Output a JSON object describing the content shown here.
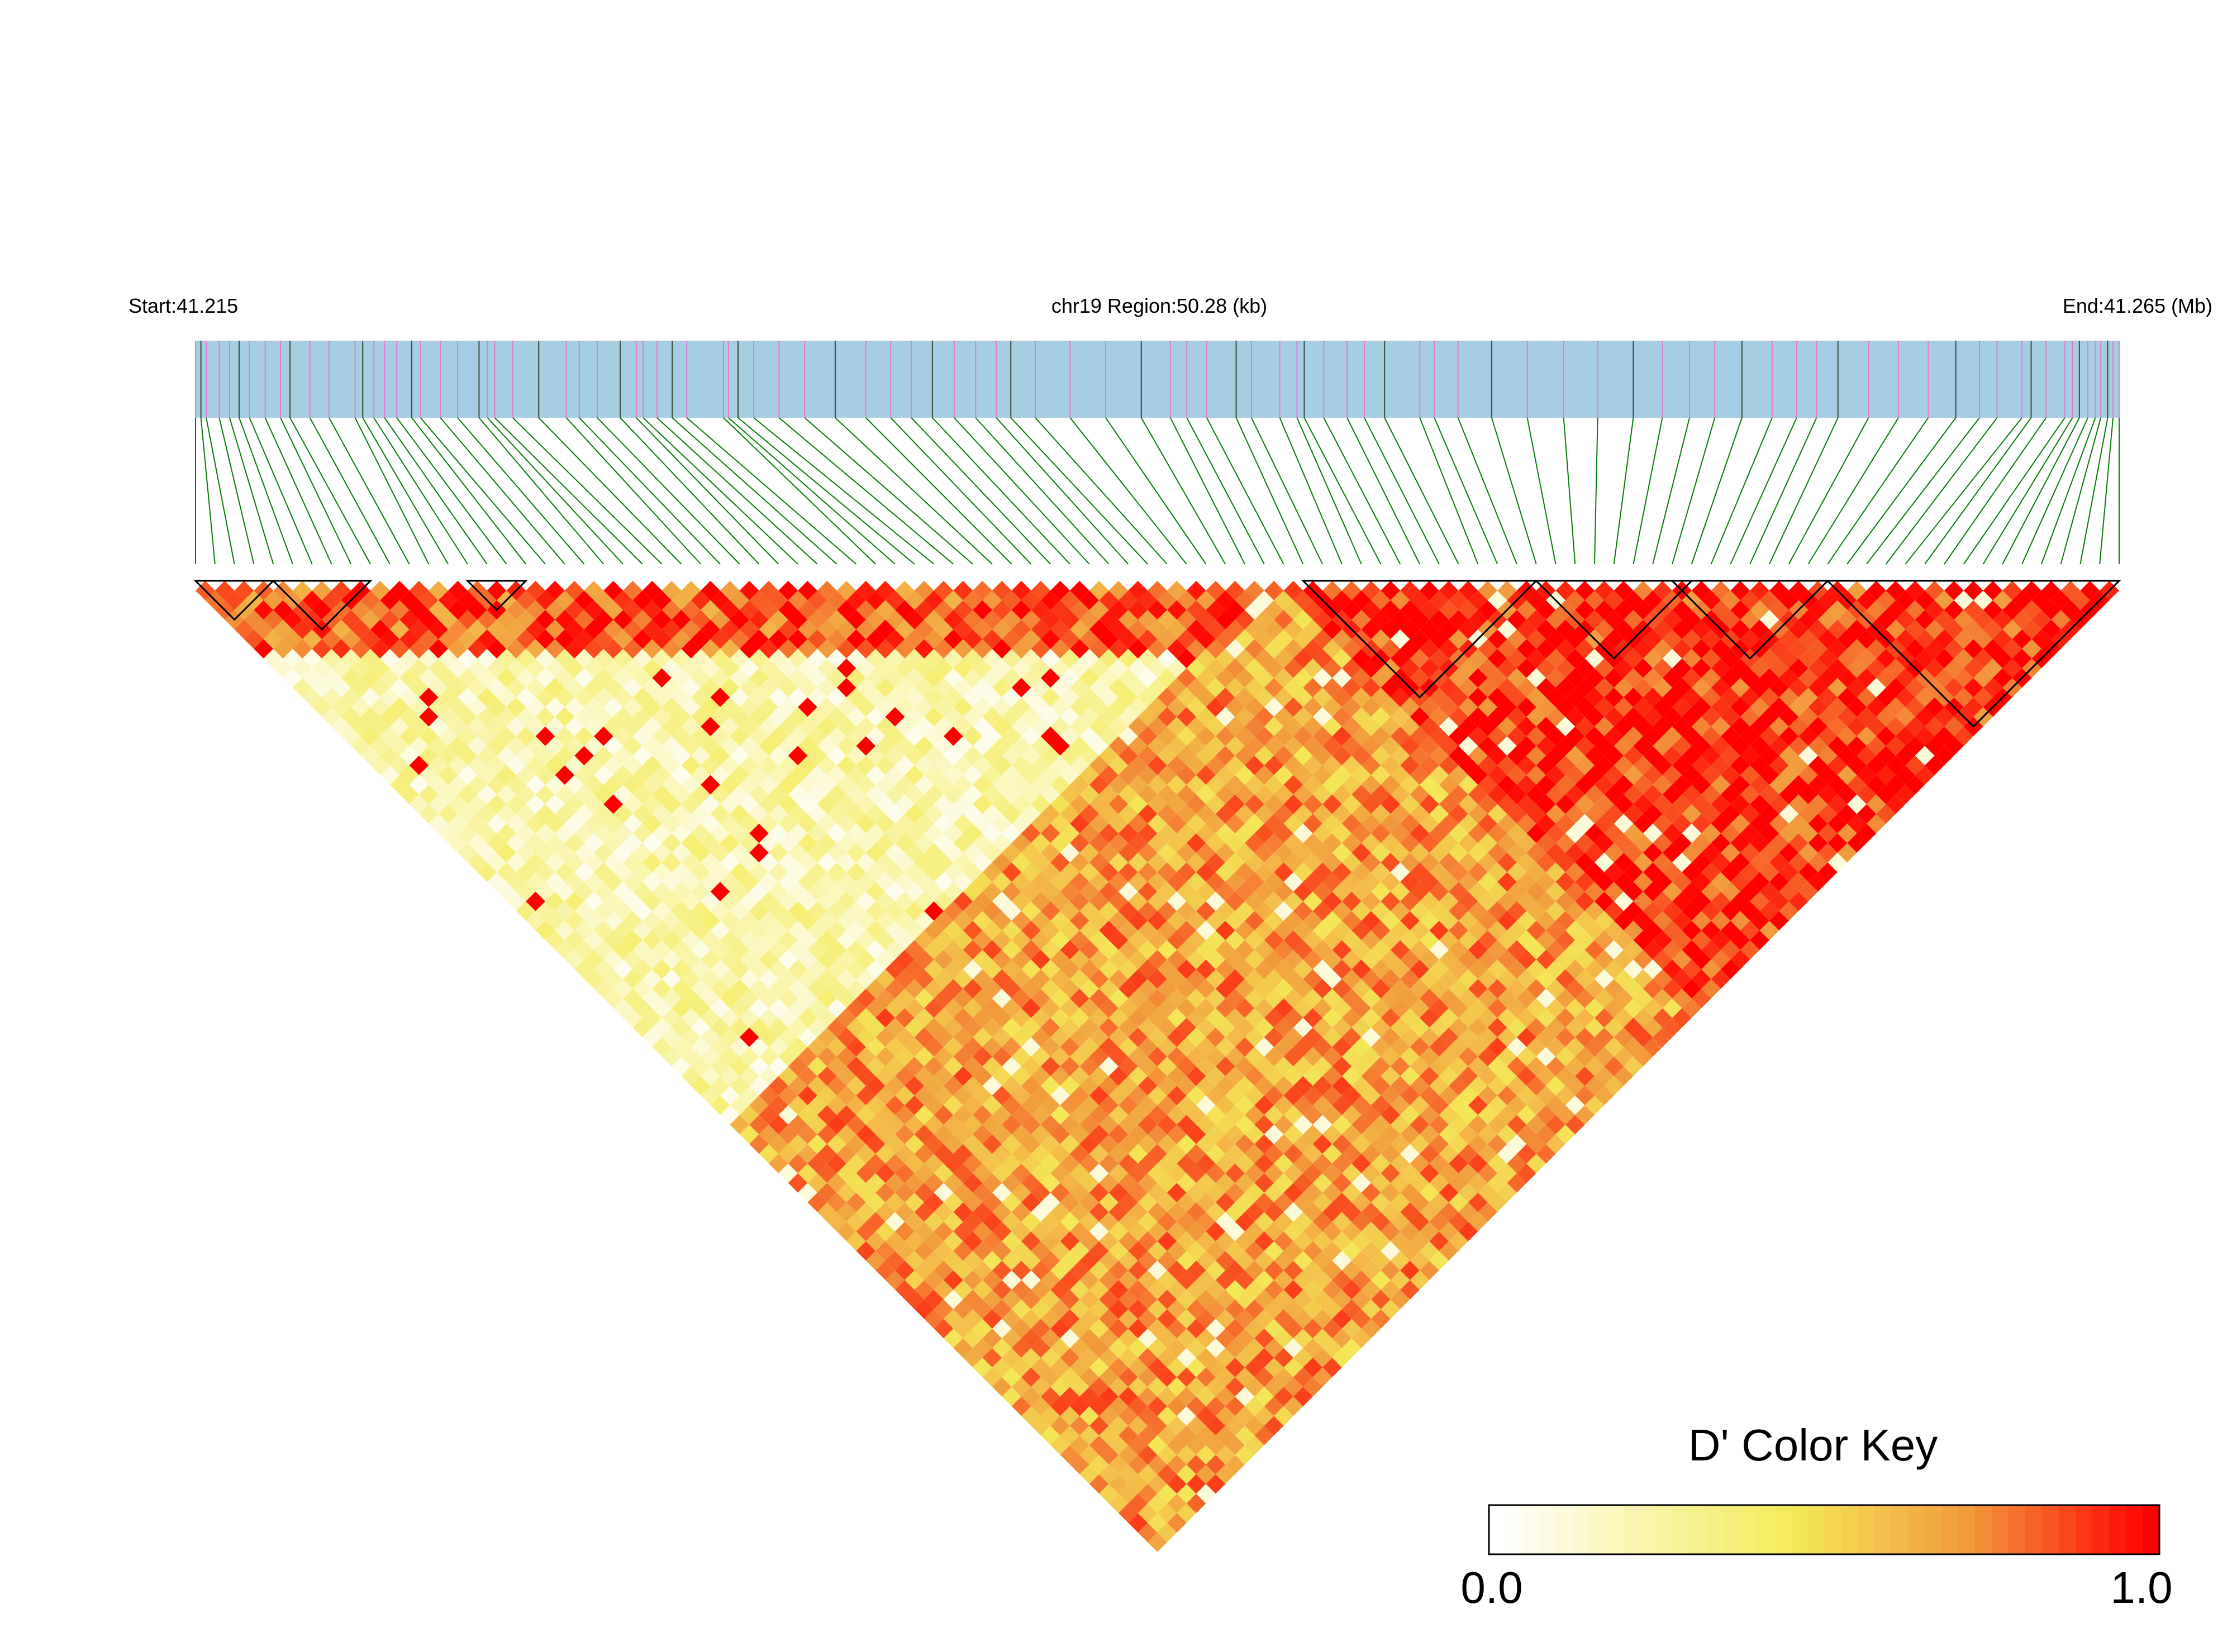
{
  "chart_data": {
    "type": "heatmap",
    "variant": "linkage-disequilibrium-triangle",
    "chromosome": "chr19",
    "start_label": "Start:41.215",
    "region_label": "chr19 Region:50.28 (kb)",
    "end_label": "End:41.265 (Mb)",
    "region_kb": 50.28,
    "start_mb": 41.215,
    "end_mb": 41.265,
    "marker_count": 100,
    "marker_offsets_kb": [
      0.0,
      0.14,
      0.28,
      0.62,
      0.89,
      1.14,
      1.41,
      1.82,
      2.22,
      2.47,
      2.99,
      3.49,
      4.17,
      4.37,
      4.66,
      4.94,
      5.26,
      5.65,
      5.88,
      6.4,
      6.85,
      7.41,
      7.63,
      7.82,
      8.29,
      8.97,
      9.69,
      10.03,
      10.5,
      11.1,
      11.52,
      11.7,
      12.06,
      12.46,
      12.84,
      13.8,
      13.93,
      14.18,
      14.59,
      15.25,
      15.92,
      16.72,
      17.52,
      18.17,
      18.71,
      19.26,
      19.83,
      20.39,
      20.93,
      21.31,
      21.95,
      22.86,
      23.79,
      24.72,
      25.48,
      25.91,
      26.43,
      27.2,
      27.6,
      28.34,
      28.79,
      28.98,
      29.49,
      30.1,
      30.55,
      31.08,
      32.0,
      32.38,
      33.0,
      33.88,
      34.81,
      35.76,
      36.65,
      37.58,
      38.34,
      39.05,
      39.71,
      40.42,
      41.21,
      41.85,
      42.37,
      42.93,
      43.73,
      44.51,
      45.29,
      46.01,
      46.63,
      47.09,
      47.74,
      47.98,
      48.37,
      48.86,
      49.06,
      49.24,
      49.46,
      49.66,
      49.8,
      49.98,
      50.12,
      50.28
    ],
    "haplotype_blocks": [
      [
        0,
        4
      ],
      [
        4,
        9
      ],
      [
        14,
        17
      ],
      [
        57,
        69
      ],
      [
        69,
        77
      ],
      [
        76,
        84
      ],
      [
        84,
        99
      ]
    ],
    "legend": {
      "title": "D' Color Key",
      "min_label": "0.0",
      "max_label": "1.0",
      "min": 0.0,
      "max": 1.0,
      "scale_colors": [
        "#ffffff",
        "#f4ea59",
        "#f29a3d",
        "#ff0000"
      ]
    },
    "colors": {
      "gene_bar": "#a6cee3",
      "marker_tick_pink": "#e07bd0",
      "marker_tick_dark": "#3a4a3a",
      "connector": "#0a7a0a",
      "block_outline": "#000000"
    }
  }
}
